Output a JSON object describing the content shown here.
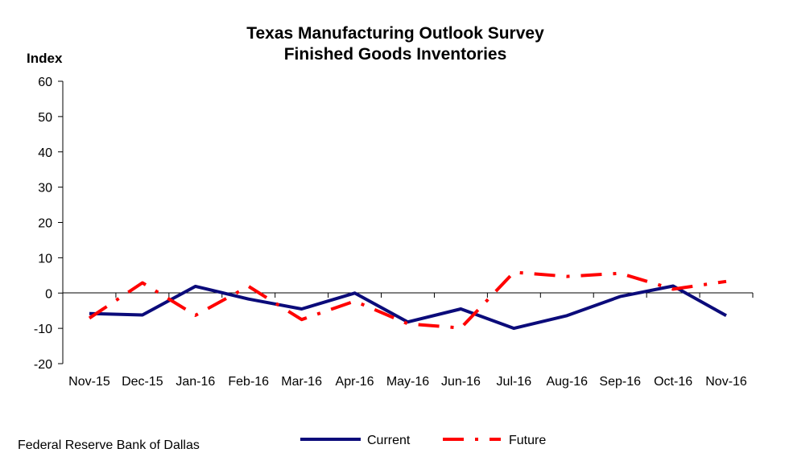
{
  "chart_data": {
    "type": "line",
    "title": "Texas Manufacturing Outlook Survey",
    "subtitle": "Finished Goods Inventories",
    "ylabel": "Index",
    "categories": [
      "Nov-15",
      "Dec-15",
      "Jan-16",
      "Feb-16",
      "Mar-16",
      "Apr-16",
      "May-16",
      "Jun-16",
      "Jul-16",
      "Aug-16",
      "Sep-16",
      "Oct-16",
      "Nov-16"
    ],
    "ylim": [
      -20,
      60
    ],
    "yticks": [
      60,
      50,
      40,
      30,
      20,
      10,
      0,
      -10,
      -20
    ],
    "series": [
      {
        "name": "Current",
        "color": "#0b0b7a",
        "style": "solid",
        "values": [
          -5.8,
          -6.2,
          1.9,
          -1.7,
          -4.5,
          0.0,
          -8.2,
          -4.5,
          -10.0,
          -6.4,
          -1.0,
          2.0,
          -6.4
        ]
      },
      {
        "name": "Future",
        "color": "#ff0000",
        "style": "dash-dot",
        "values": [
          -7.1,
          2.9,
          -6.3,
          1.9,
          -7.5,
          -2.3,
          -8.7,
          -9.9,
          5.9,
          4.7,
          5.6,
          1.1,
          3.3
        ]
      }
    ],
    "legend_position": "bottom",
    "grid": false
  },
  "footer": {
    "source": "Federal Reserve Bank of Dallas"
  }
}
